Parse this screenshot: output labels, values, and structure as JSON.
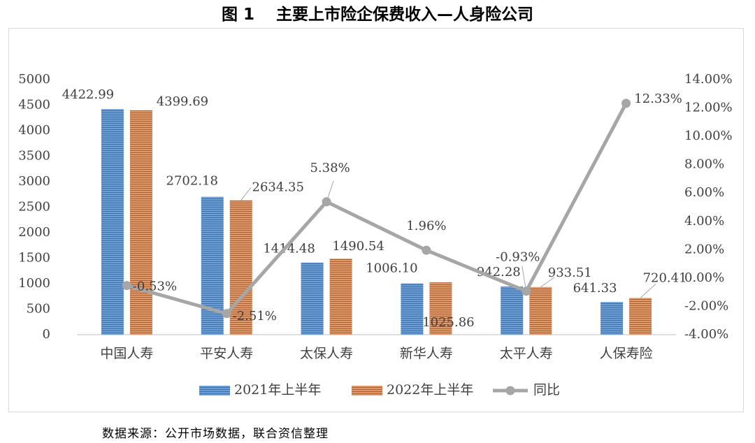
{
  "figure_title": "图 1　 主要上市险企保费收入—人身险公司",
  "source_note": "数据来源：公开市场数据，联合资信整理",
  "chart_data": {
    "type": "bar",
    "categories": [
      "中国人寿",
      "平安人寿",
      "太保人寿",
      "新华人寿",
      "太平人寿",
      "人保寿险"
    ],
    "series": [
      {
        "name": "2021年上半年",
        "type": "bar",
        "axis": "left",
        "color": "#5b8fc9",
        "values": [
          4422.99,
          2702.18,
          1414.48,
          1006.1,
          942.28,
          641.33
        ],
        "labels": [
          "4422.99",
          "2702.18",
          "1414.48",
          "1006.10",
          "942.28",
          "641.33"
        ]
      },
      {
        "name": "2022年上半年",
        "type": "bar",
        "axis": "left",
        "color": "#d9895a",
        "values": [
          4399.69,
          2634.35,
          1490.54,
          1025.86,
          933.51,
          720.41
        ],
        "labels": [
          "4399.69",
          "2634.35",
          "1490.54",
          "1025.86",
          "933.51",
          "720.41"
        ]
      },
      {
        "name": "同比",
        "type": "line",
        "axis": "right",
        "color": "#a6a6a6",
        "values": [
          -0.53,
          -2.51,
          5.38,
          1.96,
          -0.93,
          12.33
        ],
        "labels": [
          "-0.53%",
          "-2.51%",
          "5.38%",
          "1.96%",
          "-0.93%",
          "12.33%"
        ]
      }
    ],
    "y_left": {
      "ylim": [
        0,
        5000
      ],
      "ticks": [
        "0",
        "500",
        "1000",
        "1500",
        "2000",
        "2500",
        "3000",
        "3500",
        "4000",
        "4500",
        "5000"
      ]
    },
    "y_right": {
      "ylim": [
        -4,
        14
      ],
      "ticks": [
        "-4.00%",
        "-2.00%",
        "0.00%",
        "2.00%",
        "4.00%",
        "6.00%",
        "8.00%",
        "10.00%",
        "12.00%",
        "14.00%"
      ]
    },
    "legend_position": "bottom",
    "grid": false
  }
}
